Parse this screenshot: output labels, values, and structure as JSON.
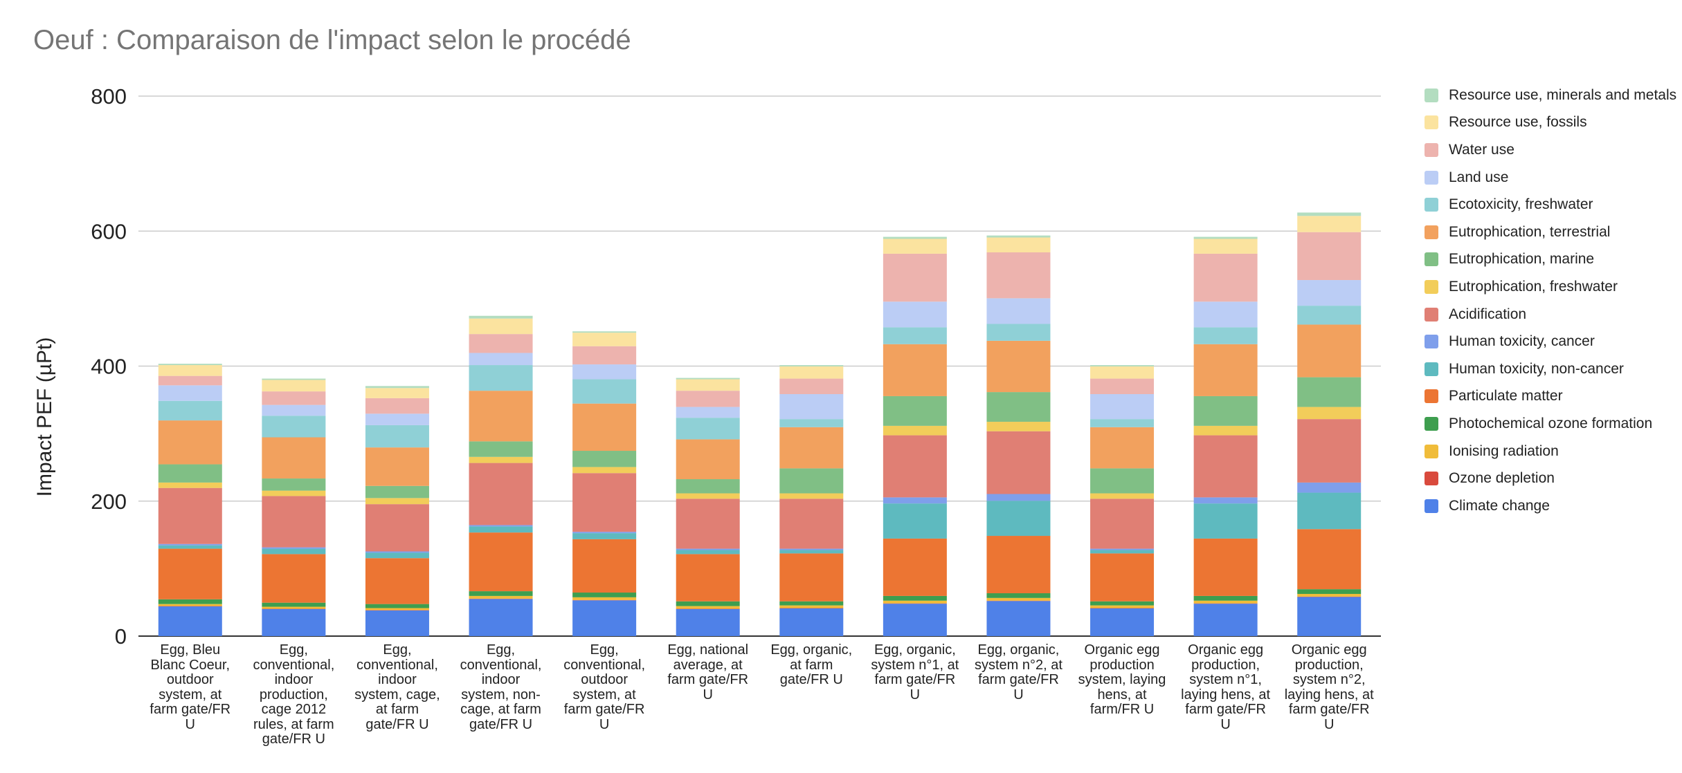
{
  "chart_data": {
    "type": "bar",
    "stacked": true,
    "title": "Oeuf : Comparaison de l'impact selon le procédé",
    "ylabel": "Impact PEF (µPt)",
    "xlabel": "",
    "ylim": [
      0,
      800
    ],
    "yticks": [
      0,
      200,
      400,
      600,
      800
    ],
    "grid": true,
    "legend_position": "right",
    "categories": [
      "Egg, Bleu Blanc Coeur, outdoor system, at farm gate/FR U",
      "Egg, conventional, indoor production, cage 2012 rules, at farm gate/FR U",
      "Egg, conventional, indoor system, cage, at farm gate/FR U",
      "Egg, conventional, indoor system, non-cage, at farm gate/FR U",
      "Egg, conventional, outdoor system, at farm gate/FR U",
      "Egg, national average, at farm gate/FR U",
      "Egg, organic, at farm gate/FR U",
      "Egg, organic, system n°1, at farm gate/FR U",
      "Egg, organic, system n°2, at farm gate/FR U",
      "Organic egg production system, laying hens, at farm/FR U",
      "Organic egg production, system n°1, laying hens, at farm gate/FR U",
      "Organic egg production, system n°2, laying hens, at farm gate/FR U"
    ],
    "series": [
      {
        "name": "Climate change",
        "color": "#4F81E8",
        "values": [
          44,
          40,
          38,
          55,
          53,
          40,
          41,
          48,
          52,
          41,
          48,
          58
        ]
      },
      {
        "name": "Ozone depletion",
        "color": "#D94A3D",
        "values": [
          0.5,
          0.5,
          0.5,
          0.5,
          0.5,
          0.5,
          0.5,
          0.5,
          0.5,
          0.5,
          0.5,
          0.5
        ]
      },
      {
        "name": "Ionising radiation",
        "color": "#F0BC3A",
        "values": [
          3,
          3,
          3,
          4,
          4,
          4,
          4,
          4,
          4,
          4,
          4,
          4
        ]
      },
      {
        "name": "Photochemical ozone formation",
        "color": "#3E9E4F",
        "values": [
          7,
          6,
          6,
          7,
          7,
          7,
          6,
          7,
          7,
          6,
          7,
          7
        ]
      },
      {
        "name": "Particulate matter",
        "color": "#EC7533",
        "values": [
          75,
          72,
          68,
          87,
          79,
          70,
          71,
          85,
          85,
          71,
          85,
          89
        ]
      },
      {
        "name": "Human toxicity, non-cancer",
        "color": "#5EBABF",
        "values": [
          5,
          8,
          8,
          9,
          9,
          6,
          5,
          52,
          52,
          5,
          52,
          54
        ]
      },
      {
        "name": "Human toxicity, cancer",
        "color": "#7F9FEB",
        "values": [
          2,
          2,
          2,
          2,
          2,
          2,
          2,
          9,
          10,
          2,
          9,
          15
        ]
      },
      {
        "name": "Acidification",
        "color": "#E07F74",
        "values": [
          83,
          76,
          70,
          92,
          87,
          74,
          74,
          92,
          93,
          74,
          92,
          94
        ]
      },
      {
        "name": "Eutrophication, freshwater",
        "color": "#F2CD5A",
        "values": [
          8,
          8,
          9,
          9,
          9,
          8,
          8,
          14,
          14,
          8,
          14,
          18
        ]
      },
      {
        "name": "Eutrophication, marine",
        "color": "#80BF85",
        "values": [
          27,
          18,
          18,
          23,
          24,
          21,
          37,
          44,
          44,
          37,
          44,
          44
        ]
      },
      {
        "name": "Eutrophication, terrestrial",
        "color": "#F2A15E",
        "values": [
          65,
          61,
          57,
          75,
          70,
          59,
          61,
          77,
          76,
          61,
          77,
          78
        ]
      },
      {
        "name": "Ecotoxicity, freshwater",
        "color": "#8FD0D6",
        "values": [
          29,
          32,
          33,
          38,
          36,
          32,
          12,
          25,
          25,
          12,
          25,
          28
        ]
      },
      {
        "name": "Land use",
        "color": "#BBCDF5",
        "values": [
          23,
          16,
          17,
          18,
          22,
          16,
          37,
          38,
          38,
          37,
          38,
          38
        ]
      },
      {
        "name": "Water use",
        "color": "#EDB3AE",
        "values": [
          14,
          20,
          23,
          28,
          27,
          24,
          23,
          71,
          68,
          23,
          71,
          71
        ]
      },
      {
        "name": "Resource use, fossils",
        "color": "#FBE39F",
        "values": [
          16,
          17,
          15,
          23,
          20,
          17,
          18,
          22,
          22,
          18,
          22,
          24
        ]
      },
      {
        "name": "Resource use, minerals and metals",
        "color": "#B3DDC0",
        "values": [
          2,
          2,
          3,
          4,
          2,
          2,
          2,
          3,
          3,
          2,
          3,
          5
        ]
      }
    ]
  }
}
